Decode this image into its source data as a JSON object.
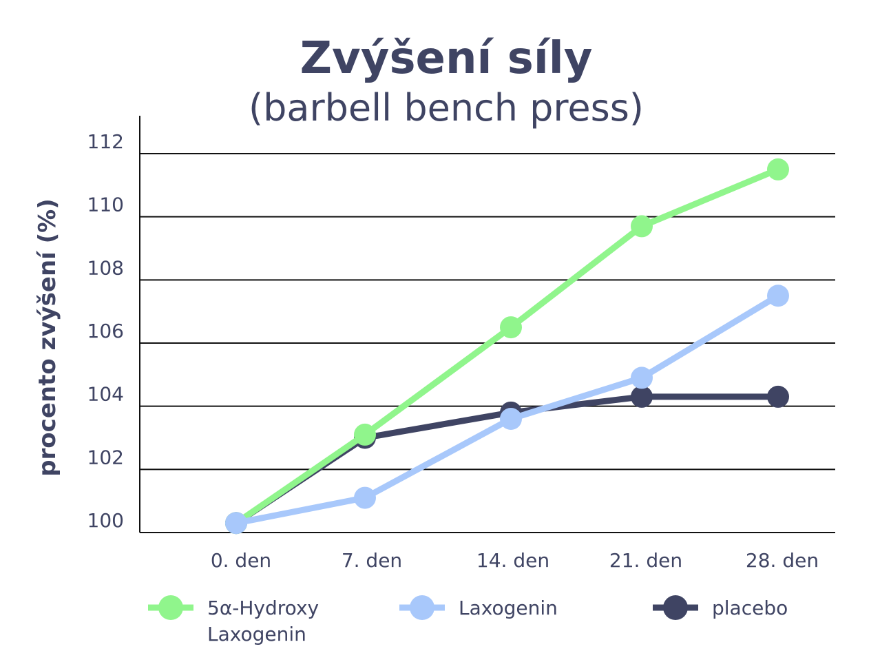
{
  "chart_data": {
    "type": "line",
    "title": "Zvýšení síly",
    "subtitle": "(barbell bench press)",
    "ylabel": "procento zvýšení (%)",
    "xlabel": "",
    "categories": [
      "0. den",
      "7. den",
      "14. den",
      "21. den",
      "28. den"
    ],
    "yticks": [
      "100",
      "102",
      "104",
      "106",
      "108",
      "110",
      "112"
    ],
    "ylim": [
      100,
      112
    ],
    "grid": true,
    "legend_position": "bottom",
    "series": [
      {
        "name": "5α-Hydroxy Laxogenin",
        "name_lines": [
          "5α-Hydroxy",
          "Laxogenin"
        ],
        "color": "#90f58c",
        "values": [
          100.3,
          103.1,
          106.5,
          109.7,
          111.5
        ]
      },
      {
        "name": "Laxogenin",
        "name_lines": [
          "Laxogenin"
        ],
        "color": "#a8c8fb",
        "values": [
          100.3,
          101.1,
          103.6,
          104.9,
          107.5
        ]
      },
      {
        "name": "placebo",
        "name_lines": [
          "placebo"
        ],
        "color": "#3f4463",
        "values": [
          100.3,
          103.0,
          103.8,
          104.3,
          104.3
        ]
      }
    ]
  }
}
